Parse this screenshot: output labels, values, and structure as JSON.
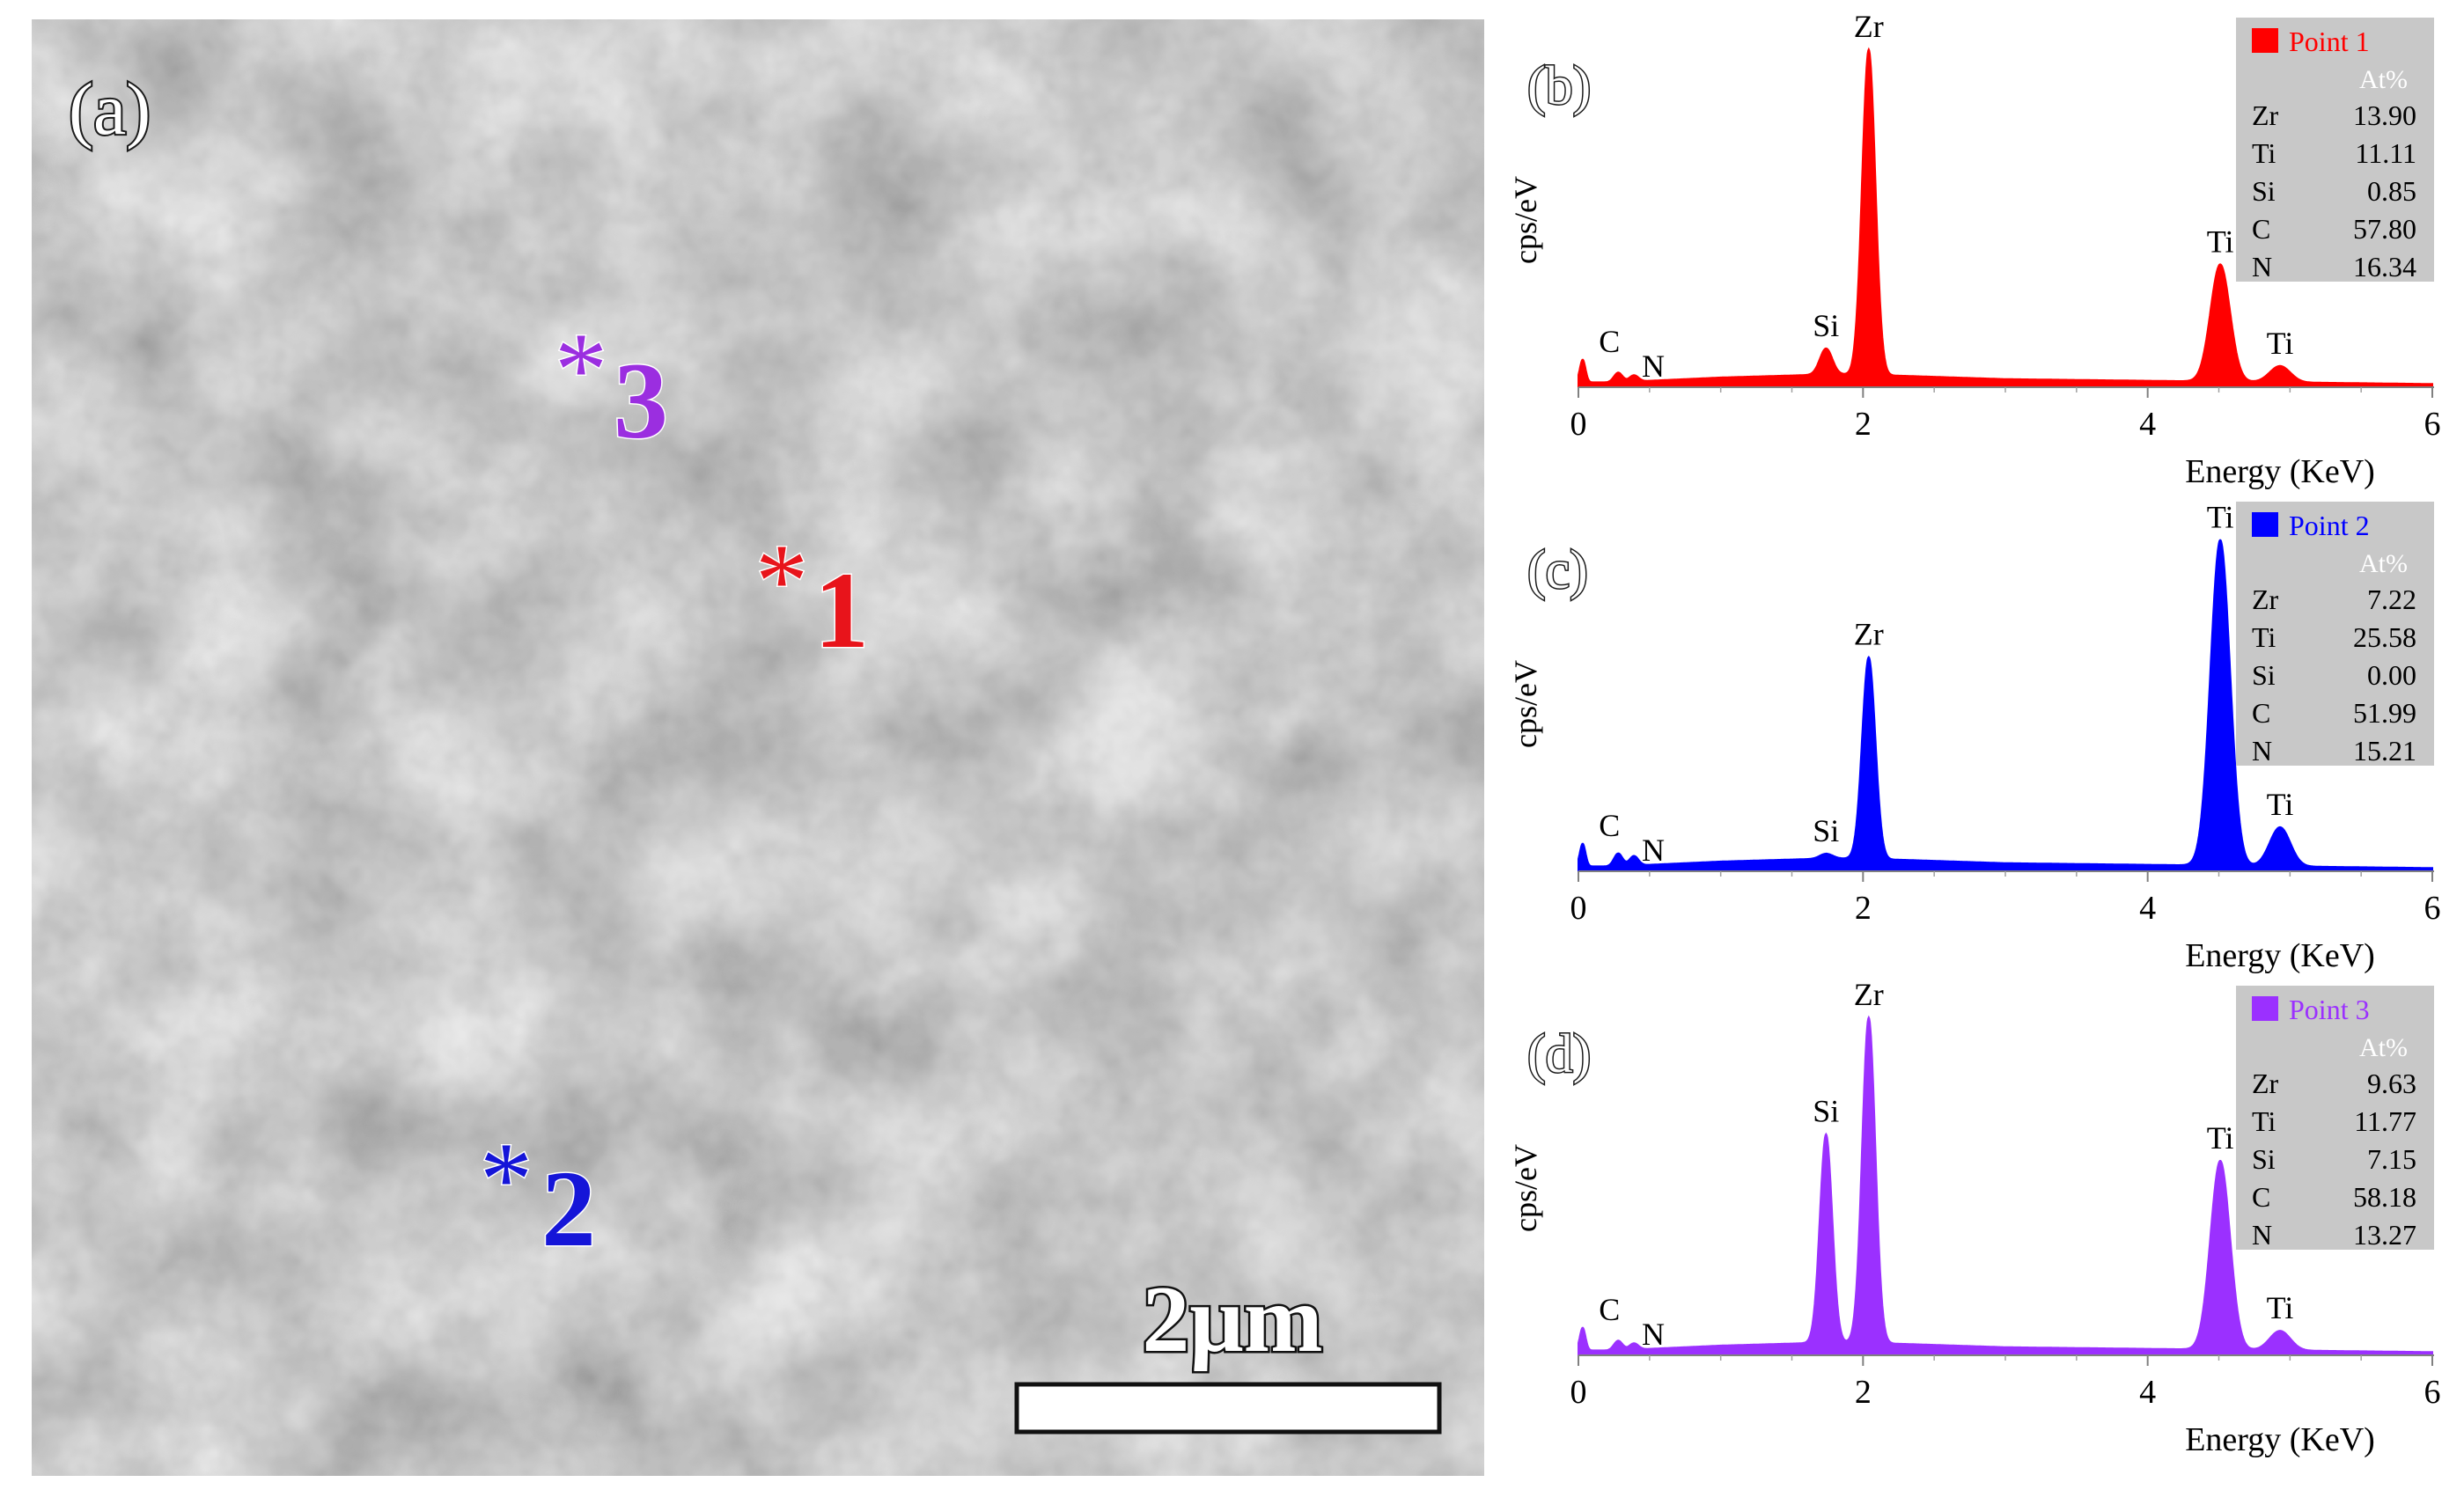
{
  "micrograph": {
    "label": "(a)",
    "scale_bar_label": "2μm",
    "markers": [
      {
        "symbol": "*",
        "number": "1",
        "color": "#e8141b"
      },
      {
        "symbol": "*",
        "number": "2",
        "color": "#1515d8"
      },
      {
        "symbol": "*",
        "number": "3",
        "color": "#9b2ee0"
      }
    ]
  },
  "chart_data": [
    {
      "type": "line",
      "panel_label": "(b)",
      "color": "#ff0000",
      "xlabel": "Energy (KeV)",
      "ylabel": "cps/eV",
      "xlim": [
        0,
        6
      ],
      "ylim": [
        0,
        100
      ],
      "xticks": [
        0,
        2,
        4,
        6
      ],
      "legend": {
        "name": "Point 1",
        "unit": "At%",
        "position": "top-right",
        "rows": [
          {
            "element": "Zr",
            "value": "13.90"
          },
          {
            "element": "Ti",
            "value": "11.11"
          },
          {
            "element": "Si",
            "value": "0.85"
          },
          {
            "element": "C",
            "value": "57.80"
          },
          {
            "element": "N",
            "value": "16.34"
          }
        ]
      },
      "background": [
        [
          0.0,
          1.5
        ],
        [
          0.3,
          1.5
        ],
        [
          0.5,
          2
        ],
        [
          1.0,
          3
        ],
        [
          1.4,
          3.5
        ],
        [
          1.8,
          4
        ],
        [
          2.3,
          3.5
        ],
        [
          3.0,
          2.5
        ],
        [
          4.0,
          2
        ],
        [
          5.0,
          1.5
        ],
        [
          6.0,
          1
        ]
      ],
      "peaks": [
        {
          "label": "C",
          "energy": 0.28,
          "height": 3
        },
        {
          "label": "N",
          "energy": 0.39,
          "height": 2
        },
        {
          "label": "Si",
          "energy": 1.74,
          "height": 8
        },
        {
          "label": "Zr",
          "energy": 2.04,
          "height": 100
        },
        {
          "label": "Ti",
          "energy": 4.51,
          "height": 36
        },
        {
          "label": "Ti",
          "energy": 4.93,
          "height": 5
        }
      ]
    },
    {
      "type": "line",
      "panel_label": "(c)",
      "color": "#0000ff",
      "xlabel": "Energy (KeV)",
      "ylabel": "cps/eV",
      "xlim": [
        0,
        6
      ],
      "ylim": [
        0,
        100
      ],
      "xticks": [
        0,
        2,
        4,
        6
      ],
      "legend": {
        "name": "Point 2",
        "unit": "At%",
        "position": "top-right",
        "rows": [
          {
            "element": "Zr",
            "value": "7.22"
          },
          {
            "element": "Ti",
            "value": "25.58"
          },
          {
            "element": "Si",
            "value": "0.00"
          },
          {
            "element": "C",
            "value": "51.99"
          },
          {
            "element": "N",
            "value": "15.21"
          }
        ]
      },
      "background": [
        [
          0.0,
          1.5
        ],
        [
          0.3,
          1.5
        ],
        [
          0.5,
          2
        ],
        [
          1.0,
          3
        ],
        [
          1.4,
          3.5
        ],
        [
          1.8,
          4
        ],
        [
          2.3,
          3.5
        ],
        [
          3.0,
          2.5
        ],
        [
          4.0,
          2
        ],
        [
          5.0,
          1.5
        ],
        [
          6.0,
          1
        ]
      ],
      "peaks": [
        {
          "label": "C",
          "energy": 0.28,
          "height": 4
        },
        {
          "label": "N",
          "energy": 0.39,
          "height": 3
        },
        {
          "label": "Si",
          "energy": 1.74,
          "height": 1.5
        },
        {
          "label": "Zr",
          "energy": 2.04,
          "height": 62
        },
        {
          "label": "Ti",
          "energy": 4.51,
          "height": 100
        },
        {
          "label": "Ti",
          "energy": 4.93,
          "height": 12
        }
      ]
    },
    {
      "type": "line",
      "panel_label": "(d)",
      "color": "#9b30ff",
      "xlabel": "Energy (KeV)",
      "ylabel": "cps/eV",
      "xlim": [
        0,
        6
      ],
      "ylim": [
        0,
        100
      ],
      "xticks": [
        0,
        2,
        4,
        6
      ],
      "legend": {
        "name": "Point 3",
        "unit": "At%",
        "position": "top-right",
        "rows": [
          {
            "element": "Zr",
            "value": "9.63"
          },
          {
            "element": "Ti",
            "value": "11.77"
          },
          {
            "element": "Si",
            "value": "7.15"
          },
          {
            "element": "C",
            "value": "58.18"
          },
          {
            "element": "N",
            "value": "13.27"
          }
        ]
      },
      "background": [
        [
          0.0,
          1.5
        ],
        [
          0.3,
          1.5
        ],
        [
          0.5,
          2
        ],
        [
          1.0,
          3
        ],
        [
          1.4,
          3.5
        ],
        [
          1.8,
          4
        ],
        [
          2.3,
          3.5
        ],
        [
          3.0,
          2.5
        ],
        [
          4.0,
          2
        ],
        [
          5.0,
          1.5
        ],
        [
          6.0,
          1
        ]
      ],
      "peaks": [
        {
          "label": "C",
          "energy": 0.28,
          "height": 3
        },
        {
          "label": "N",
          "energy": 0.39,
          "height": 2
        },
        {
          "label": "Si",
          "energy": 1.74,
          "height": 64
        },
        {
          "label": "Zr",
          "energy": 2.04,
          "height": 100
        },
        {
          "label": "Ti",
          "energy": 4.51,
          "height": 58
        },
        {
          "label": "Ti",
          "energy": 4.93,
          "height": 6
        }
      ]
    }
  ]
}
